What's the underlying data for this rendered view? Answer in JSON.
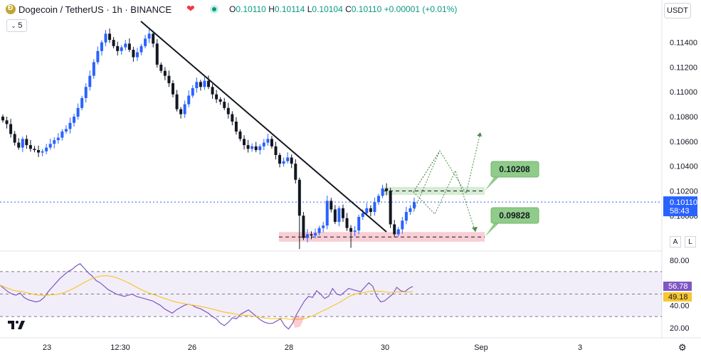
{
  "header": {
    "symbol": "Dogecoin / TetherUS · 1h · BINANCE",
    "ohlc": {
      "o_label": "O",
      "o": "0.10110",
      "h_label": "H",
      "h": "0.10114",
      "l_label": "L",
      "l": "0.10104",
      "c_label": "C",
      "c": "0.10110",
      "change": "+0.00001 (+0.01%)"
    },
    "interval_badge": "5",
    "currency": "USDT"
  },
  "colors": {
    "up": "#089981",
    "candle_up": "#2962ff",
    "candle_down": "#131722",
    "support_zone": "#f8c5cd",
    "resistance_zone": "#cfe8cc",
    "label_bg": "#8fcc89",
    "rsi_line": "#7e57c2",
    "rsi_ma": "#f7c631",
    "price_tag": "#2962ff"
  },
  "price_axis": {
    "ticks": [
      "0.11400",
      "0.11200",
      "0.11000",
      "0.10800",
      "0.10600",
      "0.10400",
      "0.10200"
    ],
    "current_price": "0.10110",
    "countdown": "58:43",
    "hidden_tick": "0.10000"
  },
  "rsi_axis": {
    "ticks": [
      "80.00",
      "40.00",
      "20.00"
    ],
    "rsi_value": "56.78",
    "ma_value": "49.18"
  },
  "time_axis": [
    "23",
    "12:30",
    "26",
    "28",
    "30",
    "Sep",
    "3"
  ],
  "annotations": {
    "target_high": "0.10208",
    "target_low": "0.09828"
  },
  "scale_buttons": {
    "auto": "A",
    "log": "L"
  },
  "logo": "TV",
  "chart_data": [
    {
      "type": "candlestick",
      "symbol": "DOGEUSDT",
      "interval": "1h",
      "ylim": [
        0.0972,
        0.1157
      ],
      "close_series": [
        0.1077,
        0.1074,
        0.1066,
        0.1059,
        0.1055,
        0.1062,
        0.1057,
        0.1054,
        0.1053,
        0.1051,
        0.1052,
        0.1055,
        0.1058,
        0.1061,
        0.1063,
        0.1068,
        0.107,
        0.1075,
        0.108,
        0.1087,
        0.1095,
        0.1104,
        0.1113,
        0.1124,
        0.1133,
        0.114,
        0.1147,
        0.1142,
        0.1137,
        0.1133,
        0.1136,
        0.1139,
        0.1134,
        0.1128,
        0.1132,
        0.1137,
        0.1143,
        0.1147,
        0.1139,
        0.1122,
        0.1117,
        0.1113,
        0.1107,
        0.1098,
        0.1086,
        0.1082,
        0.109,
        0.1097,
        0.1103,
        0.1108,
        0.1104,
        0.1109,
        0.1104,
        0.1098,
        0.1094,
        0.1092,
        0.1087,
        0.1082,
        0.1076,
        0.1068,
        0.1062,
        0.1057,
        0.1054,
        0.1056,
        0.1053,
        0.1056,
        0.1059,
        0.1062,
        0.1056,
        0.1049,
        0.1042,
        0.1044,
        0.1047,
        0.1042,
        0.1029,
        0.1,
        0.0982,
        0.0985,
        0.0984,
        0.0986,
        0.099,
        0.0992,
        0.1012,
        0.1005,
        0.0995,
        0.1006,
        0.0998,
        0.099,
        0.0987,
        0.0988,
        0.0999,
        0.1002,
        0.1006,
        0.1003,
        0.1011,
        0.1016,
        0.1022,
        0.102,
        0.0993,
        0.0985,
        0.0989,
        0.0996,
        0.1003,
        0.1006,
        0.1011
      ],
      "series": [
        {
          "name": "RSI",
          "values": [
            58,
            55,
            52,
            50,
            49,
            51,
            47,
            45,
            44,
            43,
            44,
            47,
            52,
            56,
            60,
            64,
            67,
            70,
            72,
            75,
            77,
            73,
            69,
            66,
            62,
            60,
            57,
            54,
            52,
            50,
            49,
            48,
            49,
            50,
            48,
            47,
            46,
            45,
            44,
            42,
            40,
            37,
            35,
            33,
            36,
            38,
            40,
            41,
            40,
            38,
            37,
            35,
            33,
            30,
            28,
            24,
            22,
            25,
            29,
            28,
            32,
            34,
            36,
            33,
            30,
            27,
            25,
            24,
            24,
            26,
            28,
            22,
            19,
            24,
            32,
            38,
            44,
            48,
            47,
            53,
            50,
            46,
            48,
            55,
            50,
            49,
            52,
            55,
            54,
            53,
            52,
            56,
            60,
            57,
            48,
            43,
            44,
            47,
            50,
            56,
            53,
            52,
            55,
            56.78
          ]
        }
      ],
      "rsi_bands": [
        70,
        30
      ]
    }
  ]
}
